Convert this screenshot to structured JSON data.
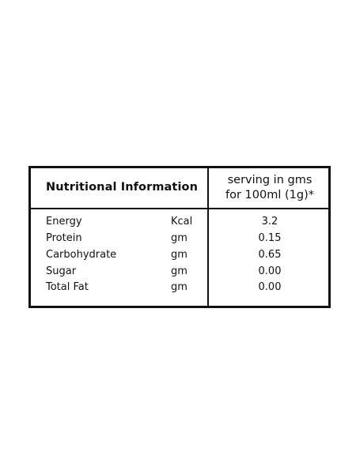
{
  "header": {
    "title": "Nutritional Information",
    "serving_line1": "serving in gms",
    "serving_line2": "for 100ml (1g)*"
  },
  "rows": [
    {
      "name": "Energy",
      "unit": "Kcal",
      "value": "3.2"
    },
    {
      "name": "Protein",
      "unit": "gm",
      "value": "0.15"
    },
    {
      "name": "Carbohydrate",
      "unit": "gm",
      "value": "0.65"
    },
    {
      "name": "Sugar",
      "unit": "gm",
      "value": "0.00"
    },
    {
      "name": "Total Fat",
      "unit": "gm",
      "value": "0.00"
    }
  ],
  "colors": {
    "border": "#111111",
    "text": "#111111",
    "background": "#ffffff"
  }
}
